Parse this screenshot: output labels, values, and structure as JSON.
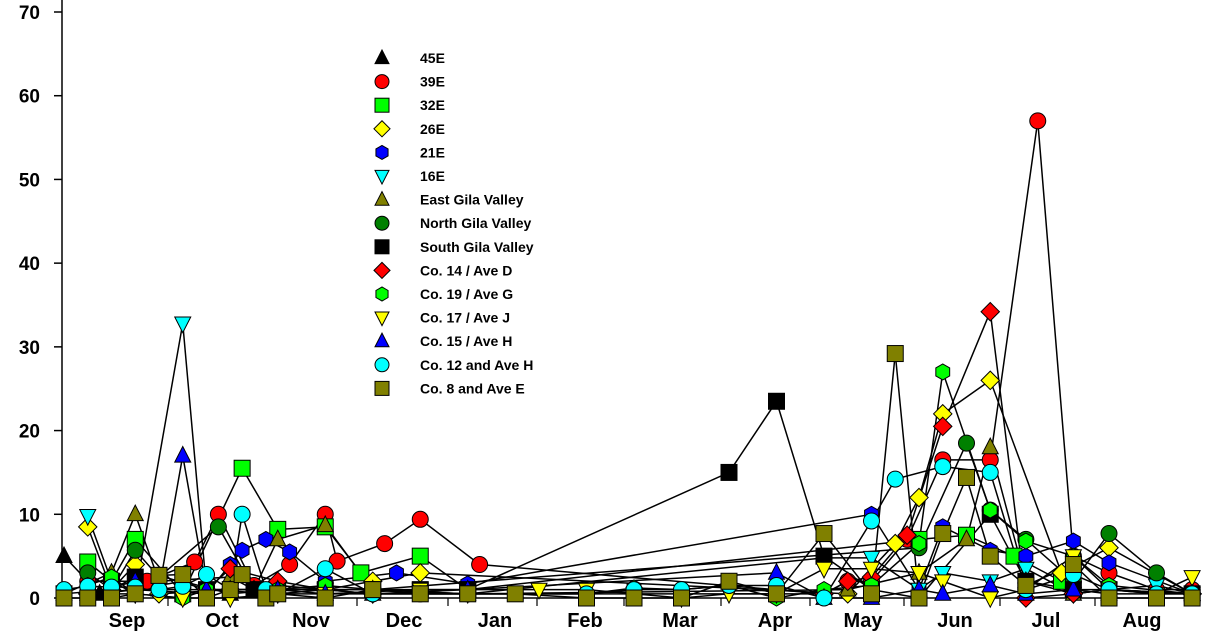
{
  "chart_data": {
    "type": "line",
    "title": "",
    "xlabel": "",
    "ylabel": "",
    "ylim": [
      0,
      70
    ],
    "yticks": [
      0,
      10,
      20,
      30,
      40,
      50,
      60,
      70
    ],
    "yticklabels": [
      "0",
      "10",
      "20",
      "30",
      "40",
      "50",
      "60",
      "70"
    ],
    "months": [
      "Sep",
      "Oct",
      "Nov",
      "Dec",
      "Jan",
      "Feb",
      "Mar",
      "Apr",
      "May",
      "Jun",
      "Jul",
      "Aug"
    ],
    "legend_position": "upper-left-center",
    "series": [
      {
        "name": "45E",
        "marker": "triangle-up",
        "color": "#000000",
        "points": [
          [
            0,
            5
          ],
          [
            1.5,
            0.5
          ],
          [
            3,
            1
          ],
          [
            5,
            2
          ],
          [
            7,
            0.5
          ],
          [
            9,
            1
          ],
          [
            11,
            1
          ]
        ]
      },
      {
        "name": "39E",
        "marker": "circle",
        "color": "#ff0000",
        "points": [
          [
            1,
            2
          ],
          [
            3.5,
            2
          ],
          [
            5.5,
            4.3
          ],
          [
            6.5,
            10
          ],
          [
            8,
            1.5
          ],
          [
            9.5,
            4
          ],
          [
            11,
            10
          ],
          [
            11.5,
            4.4
          ],
          [
            13.5,
            6.5
          ],
          [
            15,
            9.4
          ],
          [
            17.5,
            4
          ],
          [
            32,
            0.5
          ],
          [
            33,
            2
          ],
          [
            34,
            2
          ],
          [
            35.5,
            7
          ],
          [
            37,
            16.5
          ],
          [
            39,
            16.5
          ],
          [
            41,
            57
          ],
          [
            42.5,
            5
          ],
          [
            44,
            3
          ],
          [
            46,
            1
          ],
          [
            47.5,
            1
          ]
        ]
      },
      {
        "name": "32E",
        "marker": "square",
        "color": "#00ff00",
        "points": [
          [
            1,
            4.3
          ],
          [
            2,
            2
          ],
          [
            3,
            7
          ],
          [
            5,
            0.5
          ],
          [
            7.5,
            15.5
          ],
          [
            9,
            8.2
          ],
          [
            11,
            8.5
          ],
          [
            12.5,
            3
          ],
          [
            15,
            5
          ],
          [
            17,
            1
          ],
          [
            36,
            7
          ],
          [
            38,
            7.5
          ],
          [
            40,
            5
          ],
          [
            42,
            2
          ]
        ]
      },
      {
        "name": "26E",
        "marker": "diamond",
        "color": "#ffff00",
        "points": [
          [
            1,
            8.5
          ],
          [
            2,
            1
          ],
          [
            3,
            4
          ],
          [
            4,
            0.5
          ],
          [
            7,
            1
          ],
          [
            11,
            1
          ],
          [
            13,
            2
          ],
          [
            15,
            3
          ],
          [
            33,
            0.5
          ],
          [
            35,
            6.5
          ],
          [
            36,
            12
          ],
          [
            37,
            22
          ],
          [
            39,
            26
          ],
          [
            42,
            3
          ],
          [
            44,
            6
          ],
          [
            47.5,
            0.5
          ]
        ]
      },
      {
        "name": "21E",
        "marker": "hexagon",
        "color": "#0000ff",
        "points": [
          [
            1,
            0.5
          ],
          [
            3,
            1
          ],
          [
            6,
            0.5
          ],
          [
            7,
            4
          ],
          [
            7.5,
            5.7
          ],
          [
            8.5,
            7
          ],
          [
            9.5,
            5.5
          ],
          [
            11,
            2
          ],
          [
            14,
            3
          ],
          [
            17,
            1.7
          ],
          [
            34,
            10
          ],
          [
            36,
            1
          ],
          [
            37,
            8.5
          ],
          [
            39,
            5.7
          ],
          [
            40.5,
            5
          ],
          [
            42.5,
            6.8
          ],
          [
            44,
            4.2
          ],
          [
            47.5,
            0.5
          ]
        ]
      },
      {
        "name": "16E",
        "marker": "triangle-down",
        "color": "#00ffff",
        "points": [
          [
            1,
            9.8
          ],
          [
            2,
            2
          ],
          [
            3,
            0.5
          ],
          [
            5,
            32.8
          ],
          [
            6,
            1
          ],
          [
            9,
            0.5
          ],
          [
            11,
            1
          ],
          [
            13,
            0.5
          ],
          [
            17,
            0.5
          ],
          [
            32,
            4.8
          ],
          [
            34,
            4.8
          ],
          [
            36,
            1
          ],
          [
            37,
            3
          ],
          [
            39,
            2
          ],
          [
            40.5,
            3.5
          ],
          [
            42.5,
            0.5
          ],
          [
            44,
            1
          ],
          [
            46,
            1.5
          ],
          [
            47.5,
            0.5
          ]
        ]
      },
      {
        "name": "East Gila Valley",
        "marker": "triangle-up",
        "color": "#808000",
        "points": [
          [
            0,
            0.5
          ],
          [
            2,
            3
          ],
          [
            3,
            10
          ],
          [
            4,
            2
          ],
          [
            7,
            2.5
          ],
          [
            8,
            1
          ],
          [
            9,
            7
          ],
          [
            11,
            8.7
          ],
          [
            13,
            1
          ],
          [
            17,
            0.5
          ],
          [
            33,
            1
          ],
          [
            36,
            3
          ],
          [
            38,
            7
          ],
          [
            39,
            18
          ],
          [
            40.5,
            2
          ],
          [
            42.5,
            0.5
          ],
          [
            44,
            1
          ],
          [
            47.5,
            0.5
          ]
        ]
      },
      {
        "name": "North Gila Valley",
        "marker": "circle",
        "color": "#008000",
        "points": [
          [
            1,
            3
          ],
          [
            2,
            1
          ],
          [
            3,
            5.7
          ],
          [
            4,
            2.5
          ],
          [
            6.5,
            8.5
          ],
          [
            8,
            1
          ],
          [
            9,
            1.5
          ],
          [
            11,
            1
          ],
          [
            13,
            1
          ],
          [
            36,
            6
          ],
          [
            38,
            18.5
          ],
          [
            39,
            10.5
          ],
          [
            40.5,
            7
          ],
          [
            42.5,
            2
          ],
          [
            44,
            7.7
          ],
          [
            46,
            3
          ],
          [
            47.5,
            0.5
          ]
        ]
      },
      {
        "name": "South Gila Valley",
        "marker": "square",
        "color": "#000000",
        "points": [
          [
            0,
            0.5
          ],
          [
            2,
            1
          ],
          [
            3,
            2.5
          ],
          [
            4,
            2.7
          ],
          [
            6,
            1
          ],
          [
            8,
            1
          ],
          [
            11,
            1
          ],
          [
            13,
            1
          ],
          [
            15,
            1
          ],
          [
            17,
            1
          ],
          [
            28,
            15
          ],
          [
            30,
            23.5
          ],
          [
            32,
            5
          ],
          [
            34,
            1
          ],
          [
            36,
            0
          ],
          [
            39,
            10
          ],
          [
            40.5,
            2
          ],
          [
            42.5,
            1
          ],
          [
            44,
            1
          ],
          [
            47.5,
            0.5
          ]
        ]
      },
      {
        "name": "Co. 14 / Ave D",
        "marker": "diamond",
        "color": "#ff0000",
        "points": [
          [
            1,
            0.5
          ],
          [
            3,
            1
          ],
          [
            6,
            1
          ],
          [
            7,
            3.5
          ],
          [
            9,
            2
          ],
          [
            11,
            1
          ],
          [
            13,
            0.5
          ],
          [
            32,
            0.5
          ],
          [
            33,
            2
          ],
          [
            34,
            2.5
          ],
          [
            35.5,
            7.5
          ],
          [
            37,
            20.5
          ],
          [
            39,
            34.2
          ],
          [
            40.5,
            0
          ],
          [
            42.5,
            0.5
          ],
          [
            44,
            1
          ],
          [
            47.5,
            0.5
          ]
        ]
      },
      {
        "name": "Co. 19 / Ave G",
        "marker": "hexagon",
        "color": "#00ff00",
        "points": [
          [
            1,
            1.5
          ],
          [
            2,
            2.5
          ],
          [
            3,
            0.5
          ],
          [
            5,
            0
          ],
          [
            6,
            1
          ],
          [
            7,
            1
          ],
          [
            9,
            1
          ],
          [
            11,
            1.5
          ],
          [
            13,
            1
          ],
          [
            17,
            0.5
          ],
          [
            22,
            0.5
          ],
          [
            24,
            1.2
          ],
          [
            26,
            1
          ],
          [
            28,
            1.5
          ],
          [
            30,
            0
          ],
          [
            32,
            1
          ],
          [
            34,
            1.5
          ],
          [
            36,
            6.5
          ],
          [
            37,
            27
          ],
          [
            39,
            10.5
          ],
          [
            40.5,
            6.8
          ],
          [
            42.5,
            5
          ],
          [
            44,
            1.5
          ],
          [
            47.5,
            0.5
          ]
        ]
      },
      {
        "name": "Co. 17 / Ave J",
        "marker": "triangle-down",
        "color": "#ffff00",
        "points": [
          [
            1,
            0.5
          ],
          [
            3,
            0.5
          ],
          [
            5,
            0
          ],
          [
            7,
            0
          ],
          [
            9,
            0.5
          ],
          [
            11,
            0.5
          ],
          [
            15,
            1
          ],
          [
            20,
            1
          ],
          [
            22,
            1
          ],
          [
            24,
            0.5
          ],
          [
            26,
            0
          ],
          [
            28,
            0.5
          ],
          [
            30,
            0.5
          ],
          [
            32,
            3.5
          ],
          [
            34,
            3.5
          ],
          [
            36,
            3
          ],
          [
            37,
            2
          ],
          [
            39,
            0
          ],
          [
            40.5,
            1
          ],
          [
            42.5,
            5
          ],
          [
            44,
            1
          ],
          [
            46,
            0.5
          ],
          [
            47.5,
            2.5
          ]
        ]
      },
      {
        "name": "Co. 15 / Ave H",
        "marker": "triangle-up",
        "color": "#0000ff",
        "points": [
          [
            1,
            0.5
          ],
          [
            3,
            2
          ],
          [
            4,
            1
          ],
          [
            5,
            17
          ],
          [
            6,
            1
          ],
          [
            7,
            1
          ],
          [
            9,
            1
          ],
          [
            11,
            0.5
          ],
          [
            13,
            0.5
          ],
          [
            17,
            1
          ],
          [
            30,
            3
          ],
          [
            32,
            0
          ],
          [
            34,
            0
          ],
          [
            36,
            1
          ],
          [
            37,
            0.5
          ],
          [
            39,
            1.5
          ],
          [
            40.5,
            0.5
          ],
          [
            42.5,
            1
          ],
          [
            44,
            0.5
          ],
          [
            47.5,
            0.5
          ]
        ]
      },
      {
        "name": "Co. 12 and Ave H",
        "marker": "circle",
        "color": "#00ffff",
        "points": [
          [
            0,
            1
          ],
          [
            1,
            1.4
          ],
          [
            2,
            1.3
          ],
          [
            3,
            1.3
          ],
          [
            4,
            1
          ],
          [
            5,
            1.4
          ],
          [
            6,
            2.8
          ],
          [
            7,
            1
          ],
          [
            7.5,
            10
          ],
          [
            8.5,
            1
          ],
          [
            9,
            0.5
          ],
          [
            11,
            3.5
          ],
          [
            13,
            0.5
          ],
          [
            15,
            0.5
          ],
          [
            17,
            0.5
          ],
          [
            22,
            0.5
          ],
          [
            24,
            1
          ],
          [
            26,
            1
          ],
          [
            28,
            1.5
          ],
          [
            30,
            1.5
          ],
          [
            32,
            0
          ],
          [
            34,
            9.2
          ],
          [
            35,
            14.2
          ],
          [
            37,
            15.7
          ],
          [
            39,
            15
          ],
          [
            40.5,
            1
          ],
          [
            42.5,
            2.8
          ],
          [
            44,
            1
          ],
          [
            46,
            0.5
          ],
          [
            47.5,
            0.5
          ]
        ]
      },
      {
        "name": "Co. 8 and Ave E",
        "marker": "square",
        "color": "#808000",
        "points": [
          [
            0,
            0
          ],
          [
            1,
            0
          ],
          [
            2,
            0
          ],
          [
            3,
            0.5
          ],
          [
            4,
            2.7
          ],
          [
            5,
            2.8
          ],
          [
            6,
            0
          ],
          [
            7,
            1
          ],
          [
            7.5,
            2.8
          ],
          [
            8.5,
            0
          ],
          [
            9,
            0.5
          ],
          [
            11,
            0
          ],
          [
            13,
            1
          ],
          [
            15,
            0.5
          ],
          [
            17,
            0.5
          ],
          [
            19,
            0.5
          ],
          [
            22,
            0
          ],
          [
            24,
            0
          ],
          [
            26,
            0
          ],
          [
            28,
            2
          ],
          [
            30,
            0.5
          ],
          [
            32,
            7.7
          ],
          [
            34,
            0.5
          ],
          [
            35,
            29.2
          ],
          [
            36,
            0
          ],
          [
            37,
            7.7
          ],
          [
            38,
            14.4
          ],
          [
            39,
            5
          ],
          [
            40.5,
            1.5
          ],
          [
            42.5,
            4
          ],
          [
            44,
            0
          ],
          [
            46,
            0
          ],
          [
            47.5,
            0
          ]
        ]
      }
    ]
  }
}
